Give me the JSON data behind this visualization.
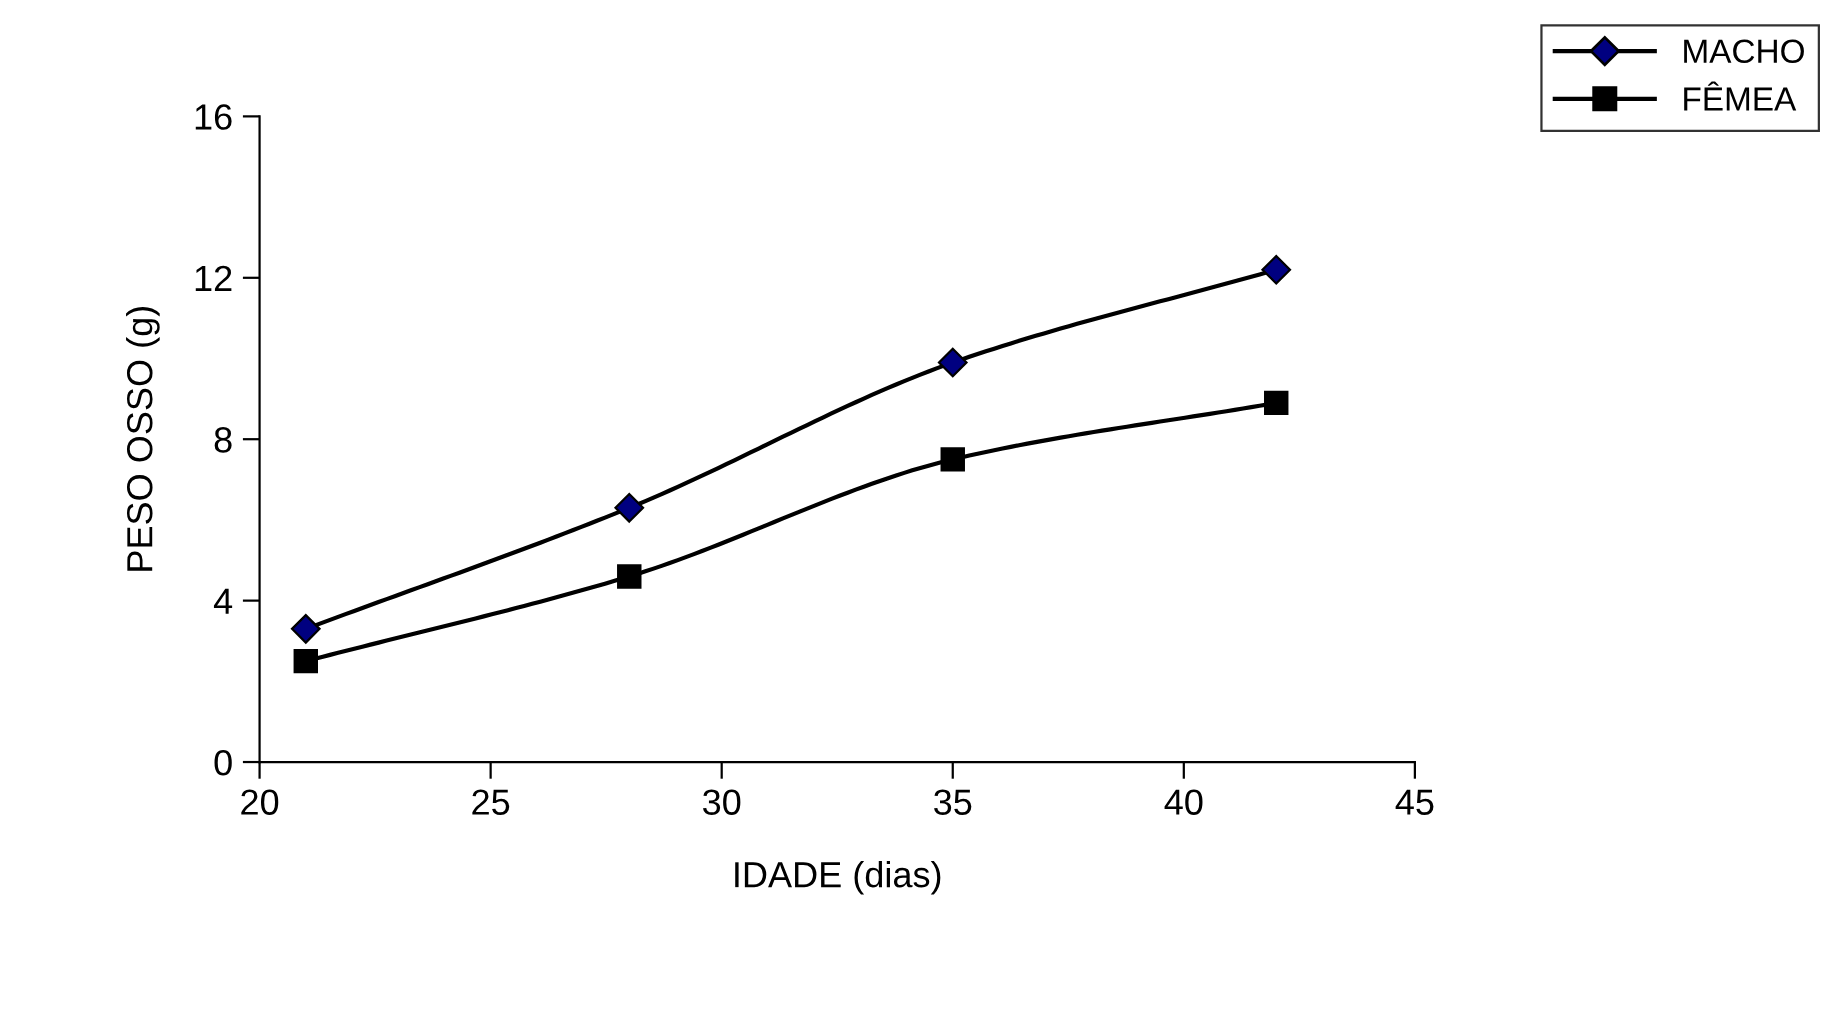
{
  "chart_data": {
    "type": "line",
    "xlabel": "IDADE (dias)",
    "ylabel": "PESO OSSO (g)",
    "x": [
      21,
      28,
      35,
      42
    ],
    "series": [
      {
        "name": "MACHO",
        "color": "#000080",
        "marker": "diamond",
        "values": [
          3.3,
          6.3,
          9.9,
          12.2
        ]
      },
      {
        "name": "FÊMEA",
        "color": "#000000",
        "marker": "square",
        "values": [
          2.5,
          4.6,
          7.5,
          8.9
        ]
      }
    ],
    "xlim": [
      20,
      45
    ],
    "xticks": [
      20,
      25,
      30,
      35,
      40,
      45
    ],
    "ylim": [
      0,
      16
    ],
    "yticks": [
      0,
      4,
      8,
      12,
      16
    ],
    "grid": false,
    "legend": "top right",
    "line_style": "solid"
  }
}
